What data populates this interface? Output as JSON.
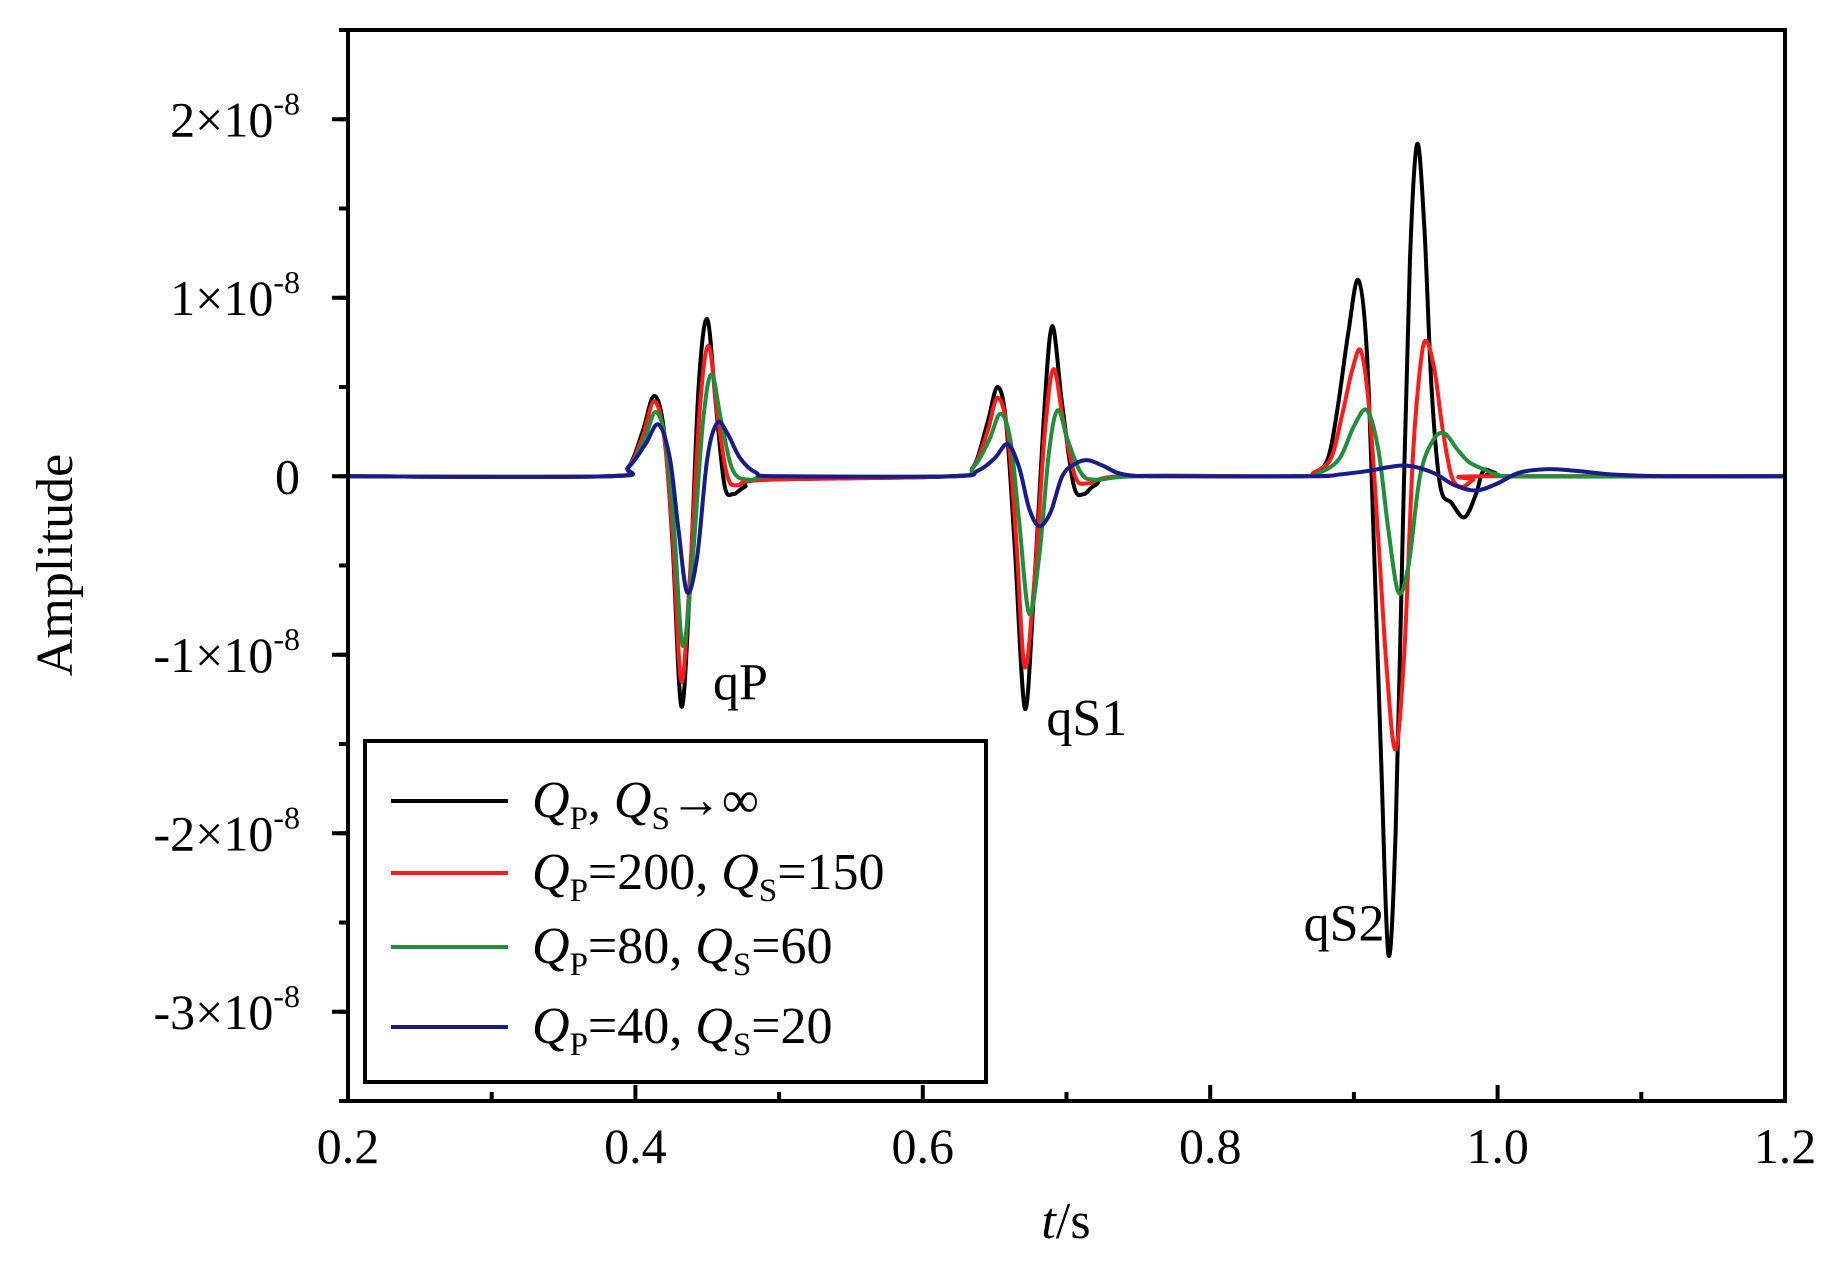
{
  "chart_data": {
    "type": "line",
    "title": "",
    "xlabel": {
      "italic": "t",
      "rest": "/s"
    },
    "ylabel": "Amplitude",
    "xlim": [
      0.2,
      1.2
    ],
    "ylim": [
      -3.5e-08,
      2.5e-08
    ],
    "x_ticks": [
      {
        "value": 0.2,
        "label": "0.2"
      },
      {
        "value": 0.4,
        "label": "0.4"
      },
      {
        "value": 0.6,
        "label": "0.6"
      },
      {
        "value": 0.8,
        "label": "0.8"
      },
      {
        "value": 1.0,
        "label": "1.0"
      },
      {
        "value": 1.2,
        "label": "1.2"
      }
    ],
    "y_ticks": [
      {
        "value": 2e-08,
        "mantissa": "2×10",
        "exp": "-8"
      },
      {
        "value": 1e-08,
        "mantissa": "1×10",
        "exp": "-8"
      },
      {
        "value": 0,
        "mantissa": "0",
        "exp": ""
      },
      {
        "value": -1e-08,
        "mantissa": "-1×10",
        "exp": "-8"
      },
      {
        "value": -2e-08,
        "mantissa": "-2×10",
        "exp": "-8"
      },
      {
        "value": -3e-08,
        "mantissa": "-3×10",
        "exp": "-8"
      }
    ],
    "annotations": [
      {
        "text": "qP",
        "t": 0.454,
        "y": -1.25e-08
      },
      {
        "text": "qS1",
        "t": 0.686,
        "y": -1.45e-08
      },
      {
        "text": "qS2",
        "t": 0.865,
        "y": -2.6e-08
      }
    ],
    "legend_position": "bottom-left",
    "series": [
      {
        "name": "QP, QS→∞",
        "legend": {
          "a": "Q",
          "asub": "P",
          "mid": ", ",
          "b": "Q",
          "bsub": "S",
          "tail": "→∞"
        },
        "color": "#000000",
        "points": [
          [
            0.2,
            0
          ],
          [
            0.38,
            0
          ],
          [
            0.395,
            5e-10
          ],
          [
            0.405,
            2.5e-09
          ],
          [
            0.413,
            4.5e-09
          ],
          [
            0.42,
            2.5e-09
          ],
          [
            0.426,
            -4e-09
          ],
          [
            0.432,
            -1.29e-08
          ],
          [
            0.438,
            -6e-09
          ],
          [
            0.444,
            5e-09
          ],
          [
            0.45,
            8.8e-09
          ],
          [
            0.456,
            4e-09
          ],
          [
            0.462,
            -5e-10
          ],
          [
            0.468,
            -1e-09
          ],
          [
            0.476,
            -6e-10
          ],
          [
            0.49,
            -2e-10
          ],
          [
            0.62,
            0
          ],
          [
            0.635,
            5e-10
          ],
          [
            0.645,
            3e-09
          ],
          [
            0.652,
            5e-09
          ],
          [
            0.658,
            3e-09
          ],
          [
            0.664,
            -4e-09
          ],
          [
            0.671,
            -1.3e-08
          ],
          [
            0.677,
            -7e-09
          ],
          [
            0.684,
            3e-09
          ],
          [
            0.69,
            8.4e-09
          ],
          [
            0.697,
            4e-09
          ],
          [
            0.705,
            -5e-10
          ],
          [
            0.712,
            -1e-09
          ],
          [
            0.72,
            -5e-10
          ],
          [
            0.74,
            0
          ],
          [
            0.86,
            0
          ],
          [
            0.872,
            2e-10
          ],
          [
            0.882,
            1e-09
          ],
          [
            0.889,
            4e-09
          ],
          [
            0.896,
            8e-09
          ],
          [
            0.903,
            1.1e-08
          ],
          [
            0.909,
            7e-09
          ],
          [
            0.914,
            -4e-09
          ],
          [
            0.919,
            -1.6e-08
          ],
          [
            0.924,
            -2.68e-08
          ],
          [
            0.929,
            -2e-08
          ],
          [
            0.934,
            -3e-09
          ],
          [
            0.939,
            1.2e-08
          ],
          [
            0.944,
            1.86e-08
          ],
          [
            0.949,
            1.4e-08
          ],
          [
            0.954,
            5e-09
          ],
          [
            0.96,
            -5e-10
          ],
          [
            0.968,
            -1.5e-09
          ],
          [
            0.977,
            -2.3e-09
          ],
          [
            0.985,
            -1e-09
          ],
          [
            0.99,
            3e-10
          ],
          [
            0.998,
            2e-10
          ],
          [
            1.01,
            0
          ],
          [
            1.2,
            0
          ]
        ]
      },
      {
        "name": "QP=200, QS=150",
        "legend": {
          "a": "Q",
          "asub": "P",
          "mid": "=200, ",
          "b": "Q",
          "bsub": "S",
          "tail": "=150"
        },
        "color": "#ff1a1a",
        "points": [
          [
            0.2,
            0
          ],
          [
            0.38,
            0
          ],
          [
            0.395,
            5e-10
          ],
          [
            0.405,
            2.2e-09
          ],
          [
            0.413,
            4.2e-09
          ],
          [
            0.42,
            2.2e-09
          ],
          [
            0.426,
            -3.5e-09
          ],
          [
            0.432,
            -1.15e-08
          ],
          [
            0.438,
            -5.5e-09
          ],
          [
            0.445,
            4e-09
          ],
          [
            0.451,
            7.3e-09
          ],
          [
            0.457,
            3.5e-09
          ],
          [
            0.464,
            0
          ],
          [
            0.472,
            -5e-10
          ],
          [
            0.49,
            -2e-10
          ],
          [
            0.62,
            0
          ],
          [
            0.635,
            5e-10
          ],
          [
            0.645,
            2.5e-09
          ],
          [
            0.652,
            4.4e-09
          ],
          [
            0.659,
            2.5e-09
          ],
          [
            0.665,
            -3.5e-09
          ],
          [
            0.671,
            -1.07e-08
          ],
          [
            0.678,
            -5.5e-09
          ],
          [
            0.685,
            2.5e-09
          ],
          [
            0.691,
            6e-09
          ],
          [
            0.698,
            3e-09
          ],
          [
            0.706,
            0
          ],
          [
            0.715,
            -4e-10
          ],
          [
            0.74,
            0
          ],
          [
            0.86,
            0
          ],
          [
            0.872,
            2e-10
          ],
          [
            0.884,
            1e-09
          ],
          [
            0.892,
            3.5e-09
          ],
          [
            0.899,
            6e-09
          ],
          [
            0.905,
            7e-09
          ],
          [
            0.911,
            3.5e-09
          ],
          [
            0.917,
            -3.5e-09
          ],
          [
            0.923,
            -1.1e-08
          ],
          [
            0.929,
            -1.53e-08
          ],
          [
            0.935,
            -1e-08
          ],
          [
            0.941,
            1e-09
          ],
          [
            0.946,
            6e-09
          ],
          [
            0.95,
            7.6e-09
          ],
          [
            0.956,
            6e-09
          ],
          [
            0.962,
            2.5e-09
          ],
          [
            0.968,
            0
          ],
          [
            0.975,
            -6e-10
          ],
          [
            0.983,
            -2e-10
          ],
          [
            0.99,
            0
          ],
          [
            1.2,
            0
          ]
        ]
      },
      {
        "name": "QP=80, QS=60",
        "legend": {
          "a": "Q",
          "asub": "P",
          "mid": "=80, ",
          "b": "Q",
          "bsub": "S",
          "tail": "=60"
        },
        "color": "#1f8f3a",
        "points": [
          [
            0.2,
            0
          ],
          [
            0.38,
            0
          ],
          [
            0.395,
            5e-10
          ],
          [
            0.406,
            2e-09
          ],
          [
            0.414,
            3.6e-09
          ],
          [
            0.421,
            2e-09
          ],
          [
            0.427,
            -3e-09
          ],
          [
            0.433,
            -9.5e-09
          ],
          [
            0.44,
            -4.5e-09
          ],
          [
            0.447,
            3e-09
          ],
          [
            0.453,
            5.7e-09
          ],
          [
            0.46,
            3e-09
          ],
          [
            0.468,
            3e-10
          ],
          [
            0.48,
            -2e-10
          ],
          [
            0.5,
            0
          ],
          [
            0.62,
            0
          ],
          [
            0.635,
            5e-10
          ],
          [
            0.646,
            2e-09
          ],
          [
            0.654,
            3.5e-09
          ],
          [
            0.661,
            2e-09
          ],
          [
            0.667,
            -2.5e-09
          ],
          [
            0.674,
            -7.7e-09
          ],
          [
            0.681,
            -4.5e-09
          ],
          [
            0.688,
            1.5e-09
          ],
          [
            0.694,
            3.7e-09
          ],
          [
            0.701,
            2e-09
          ],
          [
            0.71,
            2e-10
          ],
          [
            0.72,
            -2e-10
          ],
          [
            0.75,
            0
          ],
          [
            0.86,
            0
          ],
          [
            0.876,
            2e-10
          ],
          [
            0.89,
            1e-09
          ],
          [
            0.9,
            2.8e-09
          ],
          [
            0.909,
            3.7e-09
          ],
          [
            0.917,
            1.5e-09
          ],
          [
            0.924,
            -3e-09
          ],
          [
            0.931,
            -6.5e-09
          ],
          [
            0.938,
            -5e-09
          ],
          [
            0.946,
            0
          ],
          [
            0.955,
            2e-09
          ],
          [
            0.963,
            2.4e-09
          ],
          [
            0.972,
            1.5e-09
          ],
          [
            0.98,
            8e-10
          ],
          [
            0.99,
            4e-10
          ],
          [
            1.0,
            1e-10
          ],
          [
            1.02,
            0
          ],
          [
            1.2,
            0
          ]
        ]
      },
      {
        "name": "QP=40, QS=20",
        "legend": {
          "a": "Q",
          "asub": "P",
          "mid": "=40, ",
          "b": "Q",
          "bsub": "S",
          "tail": "=20"
        },
        "color": "#1a1a8c",
        "points": [
          [
            0.2,
            0
          ],
          [
            0.38,
            0
          ],
          [
            0.395,
            5e-10
          ],
          [
            0.407,
            1.8e-09
          ],
          [
            0.416,
            2.9e-09
          ],
          [
            0.424,
            1e-09
          ],
          [
            0.43,
            -3e-09
          ],
          [
            0.436,
            -6.5e-09
          ],
          [
            0.443,
            -4.5e-09
          ],
          [
            0.45,
            1e-09
          ],
          [
            0.457,
            3e-09
          ],
          [
            0.464,
            2.4e-09
          ],
          [
            0.473,
            1e-09
          ],
          [
            0.484,
            2e-10
          ],
          [
            0.5,
            0
          ],
          [
            0.62,
            0
          ],
          [
            0.638,
            3e-10
          ],
          [
            0.65,
            1e-09
          ],
          [
            0.659,
            1.8e-09
          ],
          [
            0.667,
            5e-10
          ],
          [
            0.674,
            -1.8e-09
          ],
          [
            0.681,
            -2.8e-09
          ],
          [
            0.689,
            -2e-09
          ],
          [
            0.697,
            0
          ],
          [
            0.706,
            7e-10
          ],
          [
            0.715,
            9e-10
          ],
          [
            0.725,
            6e-10
          ],
          [
            0.74,
            1e-10
          ],
          [
            0.77,
            0
          ],
          [
            0.87,
            0
          ],
          [
            0.89,
            1e-10
          ],
          [
            0.91,
            3e-10
          ],
          [
            0.935,
            6e-10
          ],
          [
            0.955,
            2e-10
          ],
          [
            0.97,
            -5e-10
          ],
          [
            0.985,
            -8e-10
          ],
          [
            1.0,
            -4e-10
          ],
          [
            1.015,
            2e-10
          ],
          [
            1.035,
            4e-10
          ],
          [
            1.055,
            3e-10
          ],
          [
            1.08,
            1e-10
          ],
          [
            1.12,
            0
          ],
          [
            1.2,
            0
          ]
        ]
      }
    ]
  }
}
